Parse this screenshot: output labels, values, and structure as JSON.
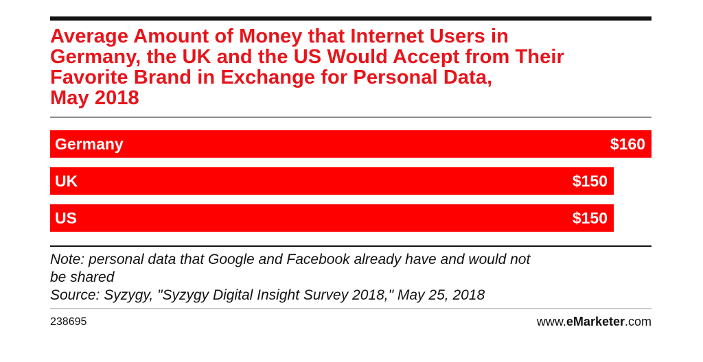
{
  "chart_data": {
    "type": "bar",
    "orientation": "horizontal",
    "title": "Average Amount of Money that Internet Users in Germany, the UK and the US Would Accept from Their Favorite Brand in Exchange for Personal Data, May 2018",
    "title_lines": [
      "Average Amount of Money that Internet Users in",
      "Germany, the UK and the US Would Accept from Their",
      "Favorite Brand in Exchange for Personal Data,",
      "May 2018"
    ],
    "categories": [
      "Germany",
      "UK",
      "US"
    ],
    "values": [
      160,
      150,
      150
    ],
    "value_labels": [
      "$160",
      "$150",
      "$150"
    ],
    "xlim": [
      0,
      160
    ],
    "grid": false,
    "legend": "none",
    "bar_color": "#ff0000",
    "title_color": "#e8141b"
  },
  "notes": {
    "note_line1": "Note: personal data that Google and Facebook already have and would not",
    "note_line2": "be shared",
    "source": "Source: Syzygy, \"Syzygy Digital Insight Survey 2018,\" May 25, 2018"
  },
  "footer": {
    "chart_id": "238695",
    "brand_prefix": "www.",
    "brand_bold": "eMarketer",
    "brand_suffix": ".com"
  }
}
